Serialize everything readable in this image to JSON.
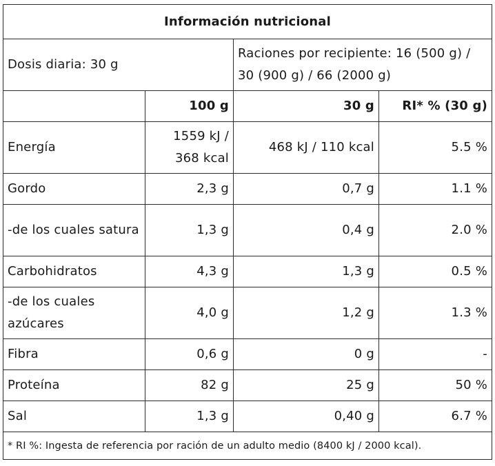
{
  "title": "Información nutricional",
  "dose": {
    "label": "Dosis diaria: 30 g",
    "servings": "Raciones por recipiente: 16 (500 g) / 30 (900 g) / 66 (2000 g)"
  },
  "columns": [
    "",
    "100 g",
    "30 g",
    "RI* % (30 g)"
  ],
  "rows": [
    {
      "name": "Energía",
      "per100": "1559 kJ / 368 kcal",
      "per30": "468 kJ / 110 kcal",
      "ri": "5.5 %"
    },
    {
      "name": "Gordo",
      "per100": "2,3 g",
      "per30": "0,7 g",
      "ri": "1.1 %"
    },
    {
      "name": "-de los cuales satura",
      "per100": "1,3 g",
      "per30": "0,4 g",
      "ri": "2.0 %"
    },
    {
      "name": "Carbohidratos",
      "per100": "4,3 g",
      "per30": "1,3 g",
      "ri": "0.5 %"
    },
    {
      "name": "-de los cuales azúcares",
      "per100": "4,0 g",
      "per30": "1,2 g",
      "ri": "1.3 %"
    },
    {
      "name": "Fibra",
      "per100": "0,6 g",
      "per30": "0 g",
      "ri": "-"
    },
    {
      "name": "Proteína",
      "per100": "82 g",
      "per30": "25 g",
      "ri": "50 %"
    },
    {
      "name": "Sal",
      "per100": "1,3 g",
      "per30": "0,40 g",
      "ri": "6.7 %"
    }
  ],
  "footnote": "* RI %: Ingesta de referencia por ración de un adulto medio (8400 kJ / 2000 kcal)."
}
